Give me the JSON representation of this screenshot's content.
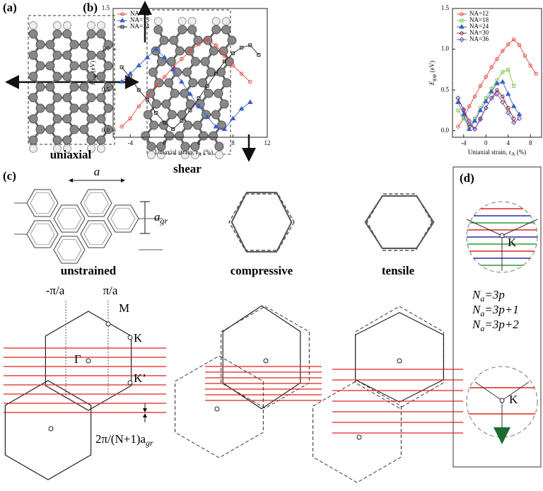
{
  "panel_a": {
    "label": "(a)",
    "captions": [
      "uniaxial",
      "shear"
    ]
  },
  "chart_data": [
    {
      "type": "line",
      "panel_label": "(b)",
      "y_label": "E",
      "y_label_sub": "gap",
      "y_label_rest": " (eV)",
      "x_label": "Uniaxial strain, ε",
      "x_label_sub": "A",
      "x_label_rest": " (%)",
      "xlim": [
        -6,
        12
      ],
      "xticks": [
        -4,
        0,
        4,
        8,
        12
      ],
      "ylim": [
        -0.08,
        1.5
      ],
      "yticks": [
        {
          "value": 0,
          "label": "0.0"
        },
        {
          "value": 0.5,
          "label": "0.5"
        },
        {
          "value": 1,
          "label": "1.0"
        },
        {
          "value": 1.5,
          "label": "1.5"
        }
      ],
      "legend": "upper left",
      "series": [
        {
          "name": "NA=12",
          "color": "#e8423a",
          "marker": "circle",
          "x": [
            -5,
            -4,
            -3,
            -2,
            -1,
            0,
            1,
            2,
            3,
            4,
            5,
            6,
            7,
            8,
            9,
            10
          ],
          "values": [
            0.05,
            0.15,
            0.3,
            0.42,
            0.55,
            0.66,
            0.78,
            0.88,
            0.98,
            1.06,
            1.12,
            1.05,
            0.92,
            0.8,
            0.7,
            0.6
          ]
        },
        {
          "name": "NA=13",
          "color": "#3a5fc8",
          "marker": "triangle",
          "x": [
            -5,
            -4,
            -3,
            -2,
            -1,
            0,
            1,
            2,
            3,
            4,
            5,
            6,
            7,
            8,
            9,
            10
          ],
          "values": [
            0.6,
            0.7,
            0.8,
            0.9,
            1.0,
            0.9,
            0.75,
            0.6,
            0.45,
            0.3,
            0.17,
            0.05,
            0.02,
            0.15,
            0.27,
            0.35
          ]
        },
        {
          "name": "NA=14",
          "color": "#222222",
          "marker": "square",
          "x": [
            -5,
            -4,
            -3,
            -2,
            -1,
            0,
            1,
            2,
            3,
            4,
            5,
            6,
            7,
            8,
            9,
            10,
            11
          ],
          "values": [
            0.78,
            0.65,
            0.5,
            0.38,
            0.22,
            0.1,
            0.02,
            0.12,
            0.25,
            0.4,
            0.55,
            0.7,
            0.85,
            0.95,
            1.02,
            1.05,
            0.93
          ]
        }
      ]
    },
    {
      "type": "line",
      "y_label": "E",
      "y_label_sub": "gap",
      "y_label_rest": " (eV)",
      "x_label": "Uniaxial strain, ε",
      "x_label_sub": "A",
      "x_label_rest": " (%)",
      "xlim": [
        -6,
        10
      ],
      "xticks": [
        -4,
        0,
        4,
        8
      ],
      "ylim": [
        -0.08,
        1.5
      ],
      "yticks": [
        {
          "value": 0,
          "label": "0.0"
        },
        {
          "value": 0.5,
          "label": "0.5"
        },
        {
          "value": 1,
          "label": "1.0"
        },
        {
          "value": 1.5,
          "label": "1.5"
        }
      ],
      "legend": "upper left",
      "series": [
        {
          "name": "NA=12",
          "color": "#e8423a",
          "marker": "circle",
          "x": [
            -5,
            -4,
            -3,
            -2,
            -1,
            0,
            1,
            2,
            3,
            4,
            5,
            6,
            7,
            8,
            9
          ],
          "values": [
            0.05,
            0.15,
            0.3,
            0.42,
            0.55,
            0.66,
            0.78,
            0.88,
            0.98,
            1.06,
            1.12,
            1.05,
            0.92,
            0.8,
            0.7
          ]
        },
        {
          "name": "NA=18",
          "color": "#7ec850",
          "marker": "square",
          "x": [
            -5,
            -4,
            -3,
            -2,
            -1,
            0,
            1,
            2,
            3,
            4,
            5
          ],
          "values": [
            0.25,
            0.15,
            0.05,
            0.15,
            0.28,
            0.4,
            0.52,
            0.62,
            0.72,
            0.75,
            0.55
          ]
        },
        {
          "name": "NA=24",
          "color": "#3a5fc8",
          "marker": "triangle",
          "x": [
            -5,
            -4,
            -3,
            -2,
            -1,
            0,
            1,
            2,
            3,
            4,
            5,
            6
          ],
          "values": [
            0.35,
            0.2,
            0.02,
            0.12,
            0.25,
            0.36,
            0.48,
            0.58,
            0.6,
            0.45,
            0.3,
            0.2
          ]
        },
        {
          "name": "NA=30",
          "color": "#8b2020",
          "marker": "circle",
          "x": [
            -5,
            -4,
            -3,
            -2,
            -1,
            0,
            1,
            2,
            3,
            4,
            5
          ],
          "values": [
            0.4,
            0.25,
            0.08,
            0.02,
            0.15,
            0.28,
            0.4,
            0.5,
            0.42,
            0.28,
            0.15
          ]
        },
        {
          "name": "NA=36",
          "color": "#6a4fb0",
          "marker": "diamond",
          "x": [
            -5,
            -4,
            -3,
            -2,
            -1,
            0,
            1,
            2,
            3,
            4,
            5,
            6
          ],
          "values": [
            0.4,
            0.26,
            0.12,
            0.02,
            0.14,
            0.28,
            0.4,
            0.45,
            0.35,
            0.22,
            0.1,
            0.15
          ]
        }
      ]
    }
  ],
  "panel_c": {
    "label": "(c)",
    "lattice_const": "a",
    "agr": "a",
    "agr_sub": "gr",
    "strain_labels": [
      "unstrained",
      "compressive",
      "tensile"
    ],
    "bz_labels": {
      "minus_pi": "-π/a",
      "pi": "π/a",
      "M": "M",
      "K": "K",
      "gamma": "Γ",
      "K_prime": "K’"
    },
    "spacing": "2π/(N+1)a",
    "spacing_sub": "gr"
  },
  "panel_d": {
    "label": "(d)",
    "K_top": "K",
    "K_bottom": "K",
    "families": [
      {
        "main": "N",
        "sub": "a",
        "rest": "=3p"
      },
      {
        "main": "N",
        "sub": "a",
        "rest": "=3p+1"
      },
      {
        "main": "N",
        "sub": "a",
        "rest": "=3p+2"
      }
    ]
  }
}
